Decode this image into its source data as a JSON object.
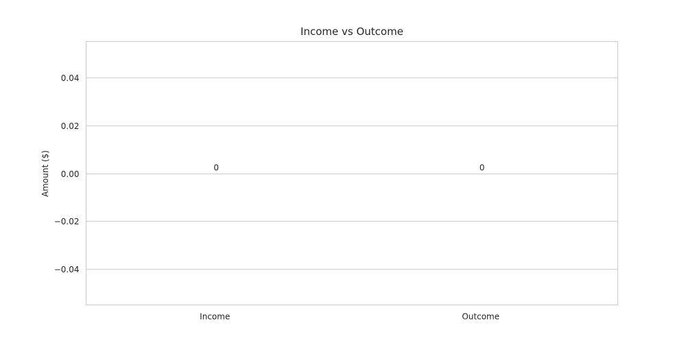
{
  "chart_data": {
    "type": "bar",
    "title": "Income vs Outcome",
    "xlabel": "",
    "ylabel": "Amount ($)",
    "categories": [
      "Income",
      "Outcome"
    ],
    "values": [
      0,
      0
    ],
    "data_labels": [
      "0",
      "0"
    ],
    "ylim": [
      -0.055,
      0.055
    ],
    "yticks": [
      0.04,
      0.02,
      0.0,
      -0.02,
      -0.04
    ],
    "ytick_labels": [
      "0.04",
      "0.02",
      "0.00",
      "−0.02",
      "−0.04"
    ],
    "grid": true,
    "legend": "none",
    "bar_color": "#ffffff",
    "grid_color": "#cccccc",
    "text_color": "#262626"
  }
}
